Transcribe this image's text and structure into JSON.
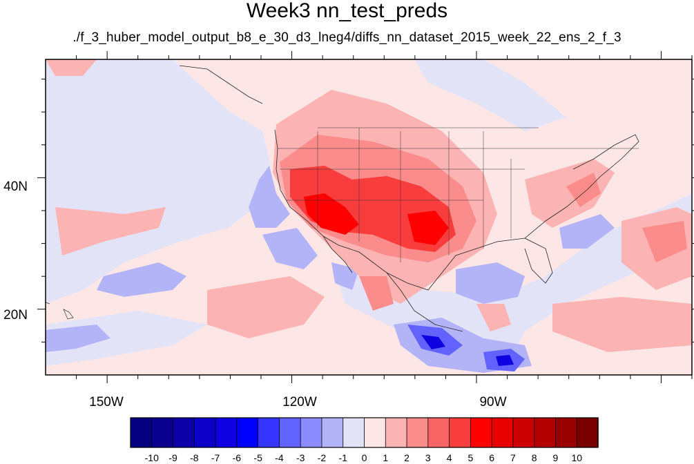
{
  "title": "Week3 nn_test_preds",
  "subtitle": "./f_3_huber_model_output_b8_e_30_d3_lneg4/diffs_nn_dataset_2015_week_22_ens_2_f_3",
  "map": {
    "lon_range": [
      -160,
      -55
    ],
    "lat_range": [
      10,
      58
    ],
    "lon_ticks": [
      {
        "value": -150,
        "label": "150W"
      },
      {
        "value": -120,
        "label": "120W"
      },
      {
        "value": -90,
        "label": "90W"
      }
    ],
    "lat_ticks": [
      {
        "value": 40,
        "label": "40N"
      },
      {
        "value": 20,
        "label": "20N"
      }
    ],
    "background_color": "#fde6e6"
  },
  "colorbar": {
    "levels": [
      "-10",
      "-9",
      "-8",
      "-7",
      "-6",
      "-5",
      "-4",
      "-3",
      "-2",
      "-1",
      "0",
      "1",
      "2",
      "3",
      "4",
      "5",
      "6",
      "7",
      "8",
      "9",
      "10"
    ],
    "colors": [
      "#05007f",
      "#0a008f",
      "#0c00a8",
      "#0d00c6",
      "#0e00e0",
      "#0000ff",
      "#3535ff",
      "#6262ff",
      "#8c8cff",
      "#b3b3f8",
      "#e3e3f8",
      "#fde6e6",
      "#fbb3b3",
      "#fa8c8c",
      "#f96565",
      "#f93c3c",
      "#ff0000",
      "#e60000",
      "#cc0000",
      "#b20000",
      "#990000",
      "#7a0000"
    ]
  }
}
